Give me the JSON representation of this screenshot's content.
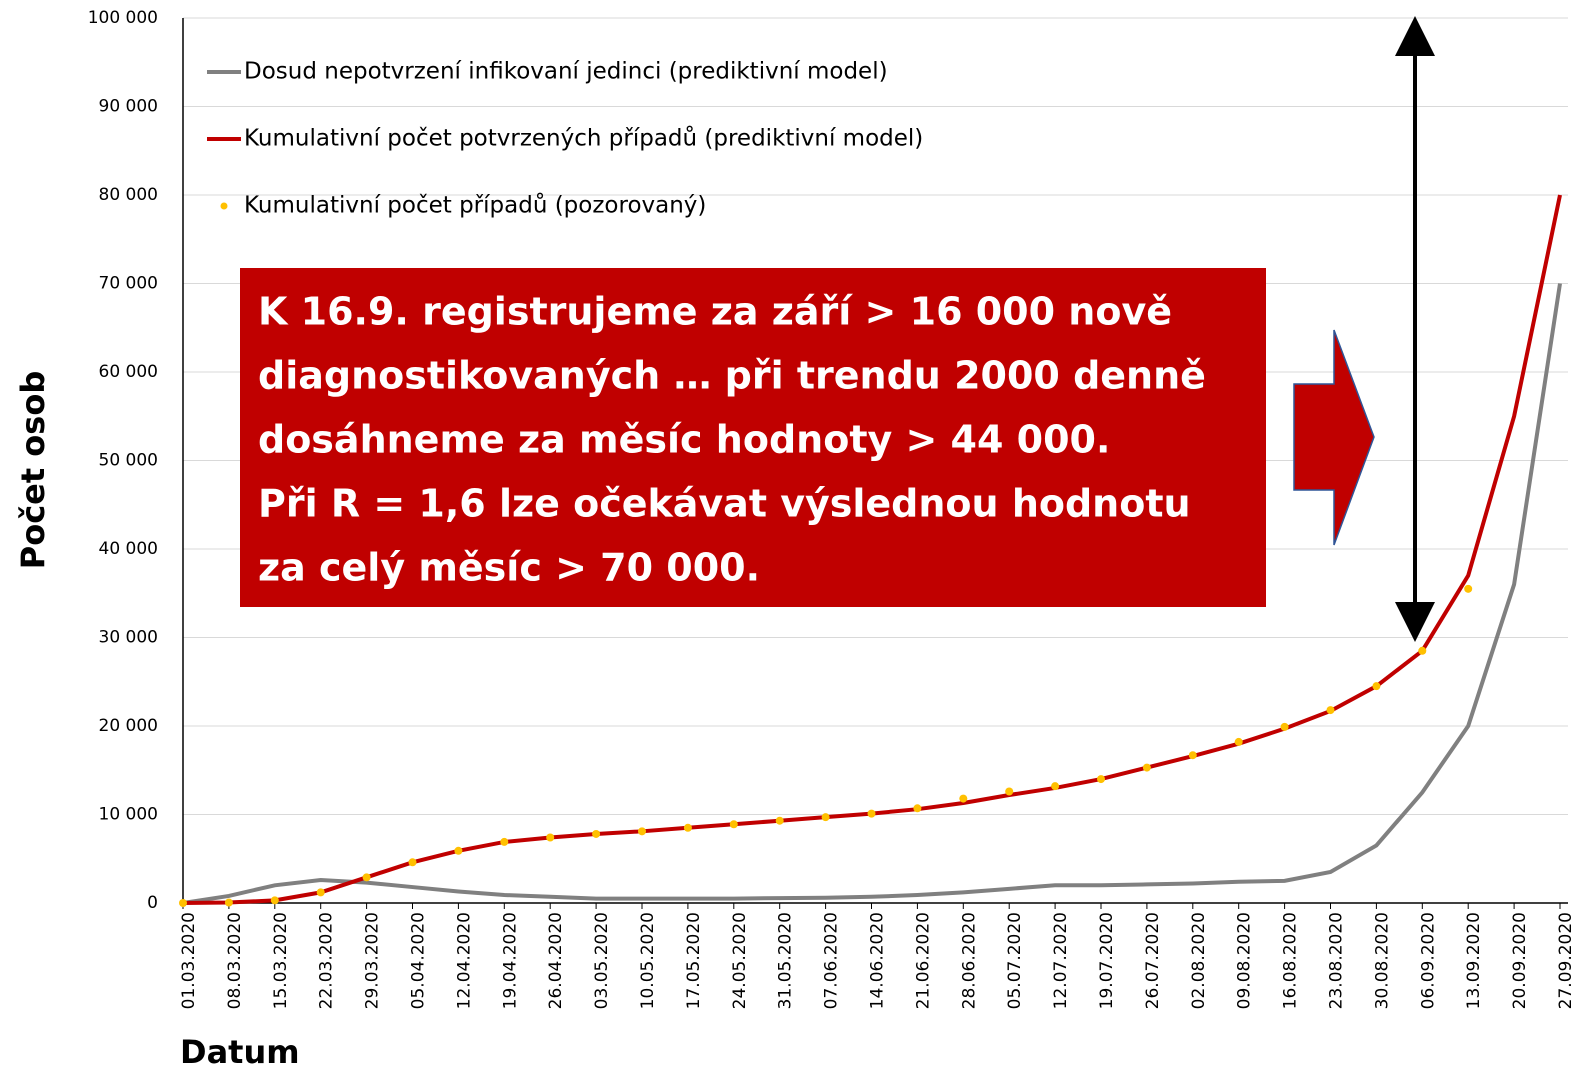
{
  "chart_data": {
    "type": "line",
    "categories": [
      "01.03.2020",
      "08.03.2020",
      "15.03.2020",
      "22.03.2020",
      "29.03.2020",
      "05.04.2020",
      "12.04.2020",
      "19.04.2020",
      "26.04.2020",
      "03.05.2020",
      "10.05.2020",
      "17.05.2020",
      "24.05.2020",
      "31.05.2020",
      "07.06.2020",
      "14.06.2020",
      "21.06.2020",
      "28.06.2020",
      "05.07.2020",
      "12.07.2020",
      "19.07.2020",
      "26.07.2020",
      "02.08.2020",
      "09.08.2020",
      "16.08.2020",
      "23.08.2020",
      "30.08.2020",
      "06.09.2020",
      "13.09.2020",
      "20.09.2020",
      "27.09.2020"
    ],
    "series": [
      {
        "name": "Dosud nepotvrzení infikovaní jedinci (prediktivní model)",
        "color": "#808080",
        "style": "line",
        "values": [
          0,
          800,
          2000,
          2600,
          2300,
          1800,
          1300,
          900,
          700,
          500,
          500,
          500,
          500,
          550,
          600,
          700,
          900,
          1200,
          1600,
          2000,
          2000,
          2100,
          2200,
          2400,
          2500,
          3500,
          6500,
          12500,
          20000,
          36000,
          70000
        ]
      },
      {
        "name": "Kumulativní počet potvrzených případů (prediktivní model)",
        "color": "#c00000",
        "style": "line",
        "values": [
          0,
          50,
          300,
          1200,
          2900,
          4600,
          5900,
          6900,
          7400,
          7800,
          8100,
          8500,
          8900,
          9300,
          9700,
          10100,
          10600,
          11300,
          12200,
          13000,
          14000,
          15300,
          16600,
          18000,
          19700,
          21700,
          24500,
          28500,
          37000,
          55000,
          80000
        ]
      },
      {
        "name": "Kumulativní počet případů (pozorovaný)",
        "color": "#ffc000",
        "style": "dots",
        "values": [
          0,
          50,
          300,
          1200,
          2900,
          4600,
          5900,
          6900,
          7400,
          7800,
          8100,
          8500,
          8900,
          9300,
          9700,
          10100,
          10700,
          11800,
          12600,
          13200,
          14000,
          15300,
          16700,
          18200,
          19900,
          21800,
          24500,
          28500,
          35500,
          null,
          null
        ]
      }
    ],
    "ylim": [
      0,
      100000
    ],
    "yticks": [
      0,
      {
        "value": 10000,
        "label": "10 000"
      },
      {
        "value": 20000,
        "label": "20 000"
      },
      {
        "value": 30000,
        "label": "30 000"
      },
      {
        "value": 40000,
        "label": "40 000"
      },
      {
        "value": 50000,
        "label": "50 000"
      },
      {
        "value": 60000,
        "label": "60 000"
      },
      {
        "value": 70000,
        "label": "70 000"
      },
      {
        "value": 80000,
        "label": "80 000"
      },
      {
        "value": 90000,
        "label": "90 000"
      },
      {
        "value": 100000,
        "label": "100 000"
      }
    ],
    "grid": true,
    "ylabel": "Počet osob",
    "xlabel": "Datum",
    "annotation": [
      "K 16.9. registrujeme za září > 16 000 nově",
      "diagnostikovaných … při trendu 2000 denně",
      "dosáhneme za měsíc hodnoty > 44 000.",
      "Při R = 1,6 lze očekávat výslednou hodnotu",
      "za celý měsíc > 70 000."
    ]
  }
}
